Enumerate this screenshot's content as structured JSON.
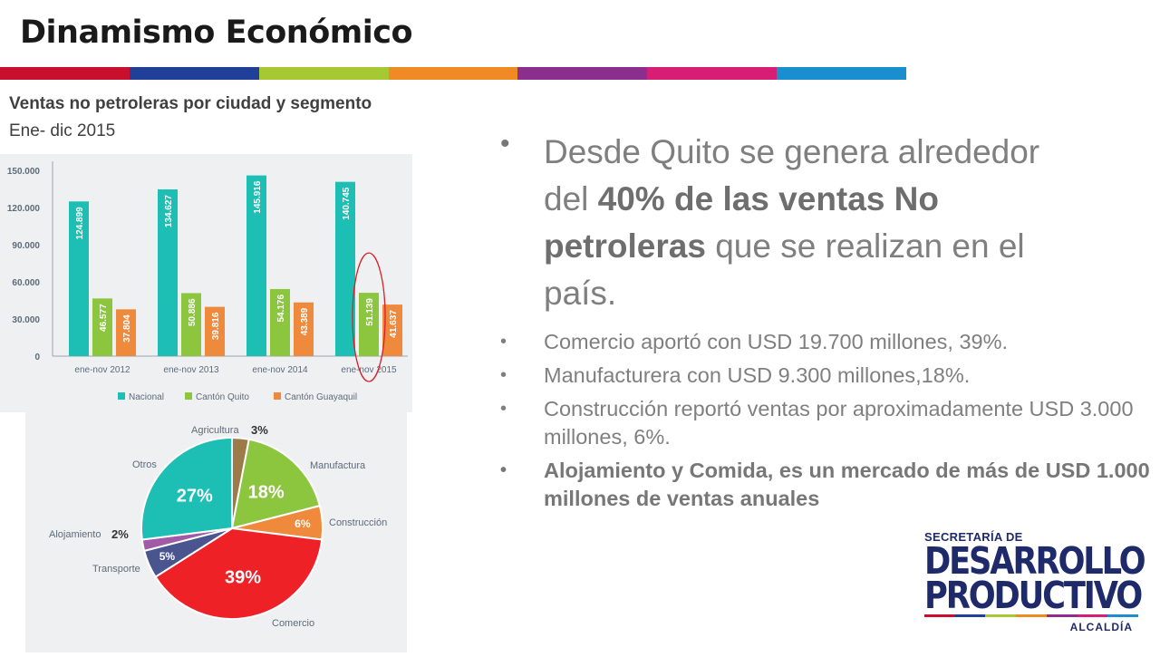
{
  "page": {
    "title": "Dinamismo Económico",
    "subtitle": "Ventas no petroleras por ciudad y segmento",
    "period": "Ene- dic 2015"
  },
  "stripe_colors": [
    "#c8102e",
    "#1f3f99",
    "#a6c832",
    "#f08a24",
    "#8b2f8f",
    "#d81e74",
    "#1a8fd0"
  ],
  "main_text": {
    "bullet": "•",
    "pre": "Desde Quito se genera alrededor del ",
    "bold": "40% de las ventas No petroleras",
    "post": " que se realizan en el país."
  },
  "bullets": [
    {
      "text": "Comercio aportó con USD 19.700 millones, 39%.",
      "bold": false
    },
    {
      "text": "Manufacturera con USD 9.300 millones,18%.",
      "bold": false
    },
    {
      "text": "Construcción reportó ventas por aproximadamente USD 3.000 millones, 6%.",
      "bold": false
    },
    {
      "text": "Alojamiento y Comida, es un mercado de más de USD 1.000 millones de ventas anuales",
      "bold": true
    }
  ],
  "logo": {
    "line1": "SECRETARÍA DE",
    "line2": "DESARROLLO",
    "line3": "PRODUCTIVO",
    "line4": "ALCALDÍA"
  },
  "chart_data": [
    {
      "type": "bar",
      "categories": [
        "ene-nov 2012",
        "ene-nov 2013",
        "ene-nov 2014",
        "ene-nov 2015"
      ],
      "series": [
        {
          "name": "Nacional",
          "color": "#1dbfb5",
          "values": [
            124899,
            134627,
            145916,
            140745
          ],
          "labels": [
            "124.899",
            "134.627",
            "145.916",
            "140.745"
          ]
        },
        {
          "name": "Cantón Quito",
          "color": "#8cc63f",
          "values": [
            46577,
            50886,
            54176,
            51139
          ],
          "labels": [
            "46.577",
            "50.886",
            "54.176",
            "51.139"
          ]
        },
        {
          "name": "Cantón Guayaquil",
          "color": "#ef8a3c",
          "values": [
            37804,
            39816,
            43389,
            41637
          ],
          "labels": [
            "37.804",
            "39.816",
            "43.389",
            "41.637"
          ]
        }
      ],
      "yticks": [
        0,
        30000,
        60000,
        90000,
        120000,
        150000
      ],
      "ytick_labels": [
        "0",
        "30.000",
        "60.000",
        "90.000",
        "120.000",
        "150.000"
      ],
      "ylim": [
        0,
        150000
      ],
      "legend_position": "bottom",
      "highlight": {
        "category": "ene-nov 2015",
        "series": "Cantón Quito",
        "shape": "red-ellipse"
      }
    },
    {
      "type": "pie",
      "slices": [
        {
          "label": "Agricultura",
          "value": 3,
          "pct_label": "3%",
          "color": "#9c7b48"
        },
        {
          "label": "Manufactura",
          "value": 18,
          "pct_label": "18%",
          "color": "#8cc63f"
        },
        {
          "label": "Construcción",
          "value": 6,
          "pct_label": "6%",
          "color": "#ef8a3c"
        },
        {
          "label": "Comercio",
          "value": 39,
          "pct_label": "39%",
          "color": "#ee2226"
        },
        {
          "label": "Transporte",
          "value": 5,
          "pct_label": "5%",
          "color": "#4a5590"
        },
        {
          "label": "Alojamiento",
          "value": 2,
          "pct_label": "2%",
          "color": "#a05aa6"
        },
        {
          "label": "Otros",
          "value": 27,
          "pct_label": "27%",
          "color": "#1dbfb5"
        }
      ]
    }
  ]
}
